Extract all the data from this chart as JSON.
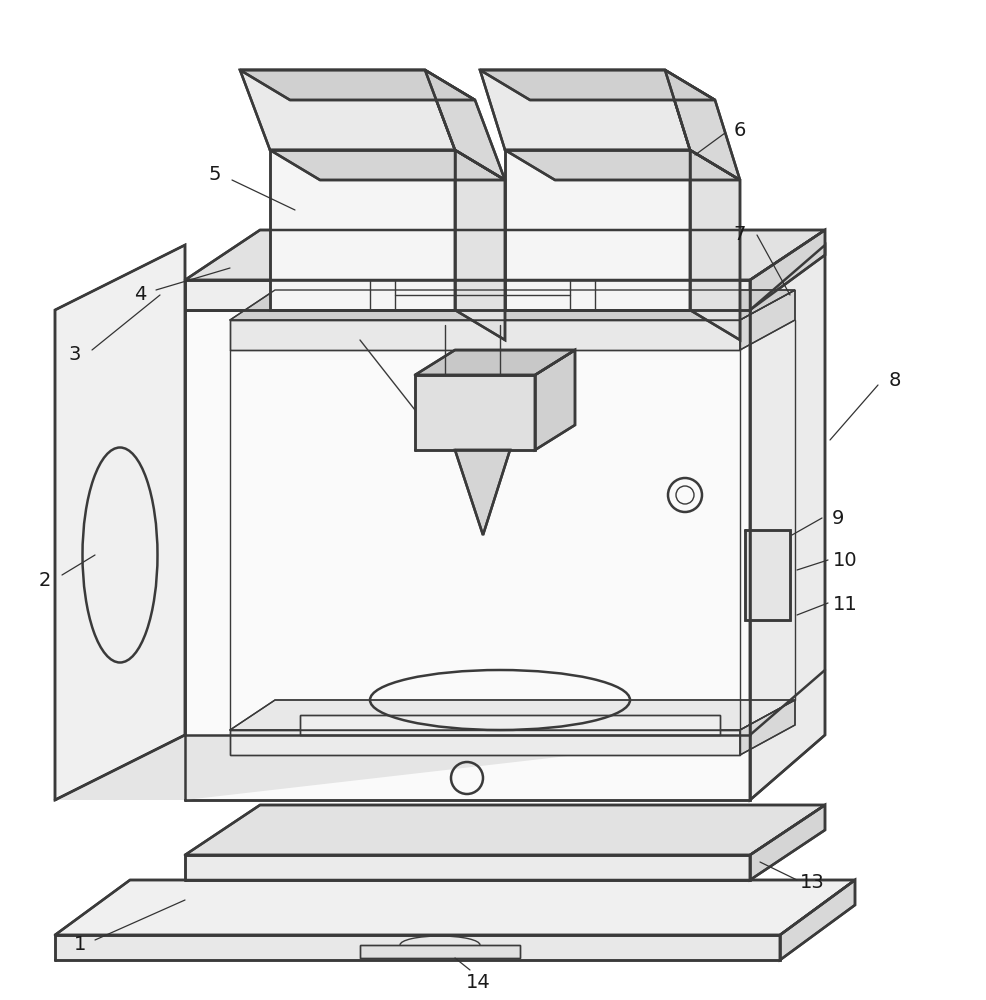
{
  "line_color": "#3a3a3a",
  "line_width": 1.8,
  "thin_line": 1.0,
  "bg_color": "#ffffff",
  "label_fontsize": 14
}
